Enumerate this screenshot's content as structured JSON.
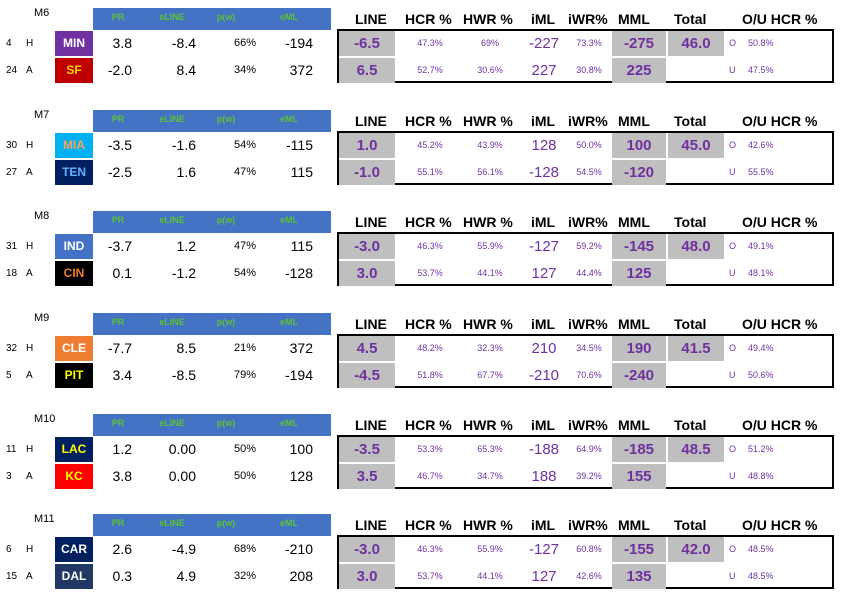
{
  "left_headers": [
    "PR",
    "eLINE",
    "p(w)",
    "eML"
  ],
  "right_headers": {
    "line": "LINE",
    "hcr": "HCR %",
    "hwr": "HWR %",
    "iml": "iML",
    "iwr": "iWR%",
    "mml": "MML",
    "total": "Total",
    "ou": "O/U HCR %"
  },
  "games": [
    {
      "id": "M6",
      "total": "46.0",
      "teams": [
        {
          "rank": "4",
          "side": "H",
          "abbr": "MIN",
          "bg": "#7030A0",
          "fg": "#FFFFFF",
          "pr": "3.8",
          "eline": "-8.4",
          "pw": "66%",
          "eml": "-194",
          "line": "-6.5",
          "hcr": "47.3%",
          "hwr": "69%",
          "iml": "-227",
          "iwr": "73.3%",
          "mml": "-275",
          "ou": "O",
          "ou_pct": "50.8%"
        },
        {
          "rank": "24",
          "side": "A",
          "abbr": "SF",
          "bg": "#C00000",
          "fg": "#FFD700",
          "pr": "-2.0",
          "eline": "8.4",
          "pw": "34%",
          "eml": "372",
          "line": "6.5",
          "hcr": "52.7%",
          "hwr": "30.6%",
          "iml": "227",
          "iwr": "30.8%",
          "mml": "225",
          "ou": "U",
          "ou_pct": "47.5%"
        }
      ]
    },
    {
      "id": "M7",
      "total": "45.0",
      "teams": [
        {
          "rank": "30",
          "side": "H",
          "abbr": "MIA",
          "bg": "#00B0F0",
          "fg": "#F4A460",
          "pr": "-3.5",
          "eline": "-1.6",
          "pw": "54%",
          "eml": "-115",
          "line": "1.0",
          "hcr": "45.2%",
          "hwr": "43.9%",
          "iml": "128",
          "iwr": "50.0%",
          "mml": "100",
          "ou": "O",
          "ou_pct": "42.6%"
        },
        {
          "rank": "27",
          "side": "A",
          "abbr": "TEN",
          "bg": "#002060",
          "fg": "#66B2FF",
          "pr": "-2.5",
          "eline": "1.6",
          "pw": "47%",
          "eml": "115",
          "line": "-1.0",
          "hcr": "55.1%",
          "hwr": "56.1%",
          "iml": "-128",
          "iwr": "54.5%",
          "mml": "-120",
          "ou": "U",
          "ou_pct": "55.5%"
        }
      ]
    },
    {
      "id": "M8",
      "total": "48.0",
      "teams": [
        {
          "rank": "31",
          "side": "H",
          "abbr": "IND",
          "bg": "#4472C4",
          "fg": "#FFFFFF",
          "pr": "-3.7",
          "eline": "1.2",
          "pw": "47%",
          "eml": "115",
          "line": "-3.0",
          "hcr": "46.3%",
          "hwr": "55.9%",
          "iml": "-127",
          "iwr": "59.2%",
          "mml": "-145",
          "ou": "O",
          "ou_pct": "49.1%"
        },
        {
          "rank": "18",
          "side": "A",
          "abbr": "CIN",
          "bg": "#000000",
          "fg": "#ED7D31",
          "pr": "0.1",
          "eline": "-1.2",
          "pw": "54%",
          "eml": "-128",
          "line": "3.0",
          "hcr": "53.7%",
          "hwr": "44.1%",
          "iml": "127",
          "iwr": "44.4%",
          "mml": "125",
          "ou": "U",
          "ou_pct": "48.1%"
        }
      ]
    },
    {
      "id": "M9",
      "total": "41.5",
      "teams": [
        {
          "rank": "32",
          "side": "H",
          "abbr": "CLE",
          "bg": "#ED7D31",
          "fg": "#FFFFFF",
          "pr": "-7.7",
          "eline": "8.5",
          "pw": "21%",
          "eml": "372",
          "line": "4.5",
          "hcr": "48.2%",
          "hwr": "32.3%",
          "iml": "210",
          "iwr": "34.5%",
          "mml": "190",
          "ou": "O",
          "ou_pct": "49.4%"
        },
        {
          "rank": "5",
          "side": "A",
          "abbr": "PIT",
          "bg": "#000000",
          "fg": "#FFFF00",
          "pr": "3.4",
          "eline": "-8.5",
          "pw": "79%",
          "eml": "-194",
          "line": "-4.5",
          "hcr": "51.8%",
          "hwr": "67.7%",
          "iml": "-210",
          "iwr": "70.6%",
          "mml": "-240",
          "ou": "U",
          "ou_pct": "50.6%"
        }
      ]
    },
    {
      "id": "M10",
      "total": "48.5",
      "teams": [
        {
          "rank": "11",
          "side": "H",
          "abbr": "LAC",
          "bg": "#002060",
          "fg": "#FFFF00",
          "pr": "1.2",
          "eline": "0.00",
          "pw": "50%",
          "eml": "100",
          "line": "-3.5",
          "hcr": "53.3%",
          "hwr": "65.3%",
          "iml": "-188",
          "iwr": "64.9%",
          "mml": "-185",
          "ou": "O",
          "ou_pct": "51.2%"
        },
        {
          "rank": "3",
          "side": "A",
          "abbr": "KC",
          "bg": "#FF0000",
          "fg": "#FFFF00",
          "pr": "3.8",
          "eline": "0.00",
          "pw": "50%",
          "eml": "128",
          "line": "3.5",
          "hcr": "46.7%",
          "hwr": "34.7%",
          "iml": "188",
          "iwr": "39.2%",
          "mml": "155",
          "ou": "U",
          "ou_pct": "48.8%"
        }
      ]
    },
    {
      "id": "M11",
      "total": "42.0",
      "teams": [
        {
          "rank": "6",
          "side": "H",
          "abbr": "CAR",
          "bg": "#002060",
          "fg": "#FFFFFF",
          "pr": "2.6",
          "eline": "-4.9",
          "pw": "68%",
          "eml": "-210",
          "line": "-3.0",
          "hcr": "46.3%",
          "hwr": "55.9%",
          "iml": "-127",
          "iwr": "60.8%",
          "mml": "-155",
          "ou": "O",
          "ou_pct": "48.5%"
        },
        {
          "rank": "15",
          "side": "A",
          "abbr": "DAL",
          "bg": "#203864",
          "fg": "#FFFFFF",
          "pr": "0.3",
          "eline": "4.9",
          "pw": "32%",
          "eml": "208",
          "line": "3.0",
          "hcr": "53.7%",
          "hwr": "44.1%",
          "iml": "127",
          "iwr": "42.6%",
          "mml": "135",
          "ou": "U",
          "ou_pct": "48.5%"
        }
      ]
    }
  ]
}
